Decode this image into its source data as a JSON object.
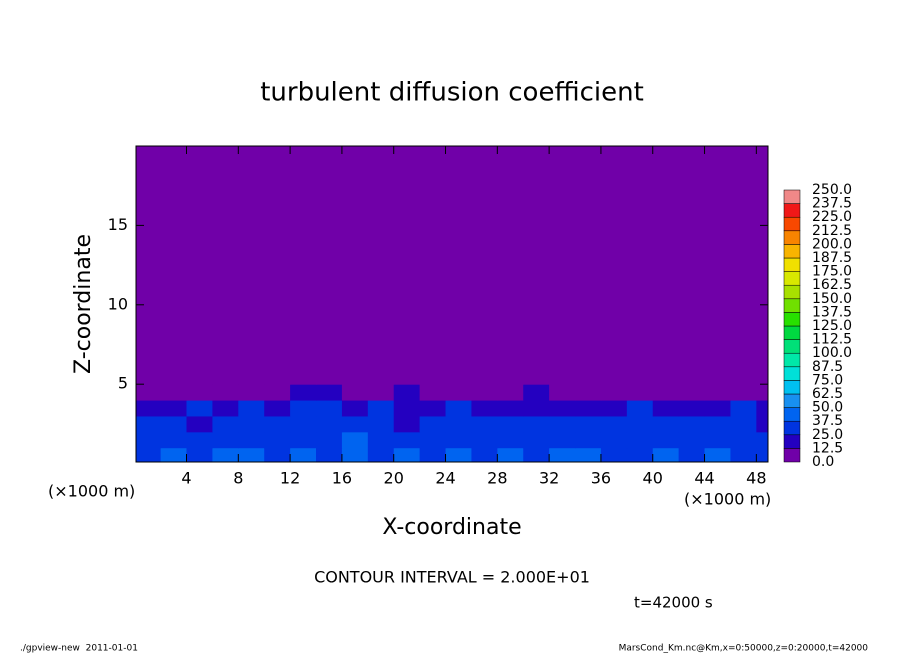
{
  "chart_data": {
    "type": "contour",
    "title": "turbulent diffusion coefficient",
    "x_label": "X-coordinate",
    "y_label": "Z-coordinate",
    "x_unit": "(×1000 m)",
    "y_unit": "(×1000 m)",
    "note": "CONTOUR INTERVAL = 2.000E+01",
    "time_label": "t=42000 s",
    "footer_left": "./gpview-new  2011-01-01",
    "footer_right": "MarsCond_Km.nc@Km,x=0:50000,z=0:20000,t=42000",
    "xlim": [
      0.1,
      48.9
    ],
    "ylim": [
      0.1,
      20
    ],
    "xticks": [
      4,
      8,
      12,
      16,
      20,
      24,
      28,
      32,
      36,
      40,
      44,
      48
    ],
    "yticks": [
      5,
      10,
      15
    ],
    "x_edges": [
      0,
      2,
      4,
      6,
      8,
      10,
      12,
      14,
      16,
      18,
      20,
      22,
      24,
      26,
      28,
      30,
      32,
      34,
      36,
      38,
      40,
      42,
      44,
      46,
      48,
      50
    ],
    "z_edges": [
      0,
      1,
      2,
      3,
      4,
      5,
      20
    ],
    "values": [
      [
        35,
        40,
        30,
        45,
        38,
        30,
        42,
        35,
        40,
        32,
        38,
        30,
        40,
        35,
        45,
        30,
        38,
        40,
        32,
        36,
        42,
        30,
        38,
        35,
        30
      ],
      [
        28,
        32,
        25,
        30,
        35,
        28,
        30,
        32,
        38,
        30,
        28,
        25,
        35,
        30,
        32,
        28,
        30,
        35,
        28,
        32,
        30,
        28,
        33,
        30,
        25
      ],
      [
        25,
        30,
        22,
        28,
        30,
        25,
        35,
        30,
        28,
        35,
        22,
        30,
        28,
        32,
        30,
        25,
        28,
        30,
        25,
        30,
        32,
        25,
        28,
        30,
        22
      ],
      [
        18,
        22,
        25,
        20,
        28,
        15,
        30,
        25,
        22,
        28,
        18,
        20,
        25,
        20,
        22,
        18,
        20,
        22,
        18,
        25,
        20,
        15,
        22,
        25,
        18
      ],
      [
        2,
        5,
        3,
        4,
        6,
        2,
        18,
        15,
        3,
        5,
        20,
        8,
        4,
        3,
        10,
        15,
        12,
        4,
        2,
        6,
        3,
        2,
        4,
        8,
        5
      ],
      [
        0,
        0,
        0,
        0,
        0,
        0,
        0,
        0,
        0,
        0,
        0,
        0,
        0,
        0,
        0,
        0,
        0,
        0,
        0,
        0,
        0,
        0,
        0,
        0,
        0
      ]
    ],
    "levels": [
      {
        "value": 0,
        "label": "0.0"
      },
      12.5,
      {
        "value": 25,
        "label": "25.0"
      },
      37.5,
      {
        "value": 50,
        "label": "50.0"
      },
      62.5,
      {
        "value": 75,
        "label": "75.0"
      },
      87.5,
      {
        "value": 100,
        "label": "100.0"
      },
      112.5,
      {
        "value": 125,
        "label": "125.0"
      },
      137.5,
      {
        "value": 150,
        "label": "150.0"
      },
      162.5,
      {
        "value": 175,
        "label": "175.0"
      },
      187.5,
      {
        "value": 200,
        "label": "200.0"
      },
      212.5,
      {
        "value": 225,
        "label": "225.0"
      },
      237.5,
      {
        "value": 250,
        "label": "250.0"
      }
    ],
    "colors": [
      "#7000a8",
      "#2400c0",
      "#0034e0",
      "#0064f0",
      "#1890f0",
      "#00c0f0",
      "#00e0d8",
      "#00e8a8",
      "#00e078",
      "#00d840",
      "#28e000",
      "#70e000",
      "#a8e000",
      "#d8e800",
      "#f0e000",
      "#f8b400",
      "#f88400",
      "#f84800",
      "#f01818",
      "#f08888"
    ]
  }
}
